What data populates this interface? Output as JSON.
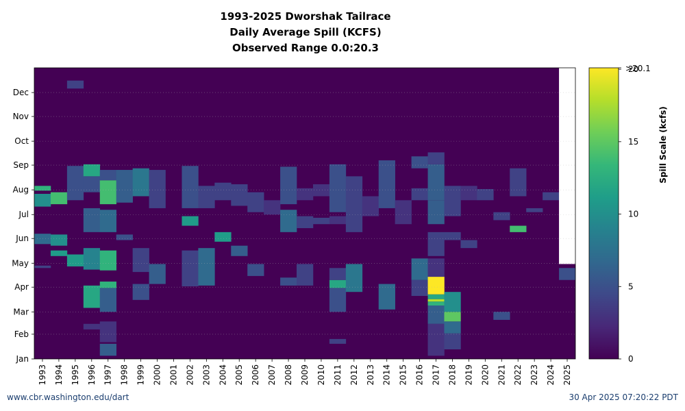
{
  "header": {
    "title_lines": [
      "1993-2025 Dworshak Tailrace",
      "Daily Average Spill (KCFS)",
      "Observed Range 0.0:20.3"
    ]
  },
  "footer": {
    "url": "www.cbr.washington.edu/dart",
    "timestamp": "30 Apr 2025 07:20:22 PDT"
  },
  "colors": {
    "viridis": [
      "#440154",
      "#482878",
      "#3e4989",
      "#31688e",
      "#26828e",
      "#1f9e89",
      "#35b779",
      "#6ece58",
      "#b5de2b",
      "#fde725"
    ],
    "missing": "#ffffff"
  },
  "chart_data": {
    "type": "heatmap",
    "title": "1993-2025 Dworshak Tailrace Daily Average Spill (KCFS) Observed Range 0.0:20.3",
    "x": [
      "1993",
      "1994",
      "1995",
      "1996",
      "1997",
      "1998",
      "1999",
      "2000",
      "2001",
      "2002",
      "2003",
      "2004",
      "2005",
      "2006",
      "2007",
      "2008",
      "2009",
      "2010",
      "2011",
      "2012",
      "2013",
      "2014",
      "2015",
      "2016",
      "2017",
      "2018",
      "2019",
      "2020",
      "2021",
      "2022",
      "2023",
      "2024",
      "2025"
    ],
    "y_ticks": [
      "Jan",
      "Feb",
      "Mar",
      "Apr",
      "May",
      "Jun",
      "Jul",
      "Aug",
      "Sep",
      "Oct",
      "Nov",
      "Dec"
    ],
    "y_tick_days": [
      1,
      32,
      60,
      91,
      121,
      152,
      182,
      213,
      244,
      274,
      305,
      335
    ],
    "ylim": [
      1,
      366
    ],
    "colorbar": {
      "label": "Spill Scale (kcfs)",
      "range": [
        0,
        20.1
      ],
      "ticks": [
        0,
        5,
        10,
        15,
        20
      ],
      "over_label": ">20.1"
    },
    "background_value": 0,
    "missing_after": {
      "year": "2025",
      "start_day": 120
    },
    "segments": [
      {
        "year": "1993",
        "start_day": 115,
        "end_day": 118,
        "value": 4
      },
      {
        "year": "1993",
        "start_day": 145,
        "end_day": 158,
        "value": 7
      },
      {
        "year": "1993",
        "start_day": 192,
        "end_day": 208,
        "value": 10
      },
      {
        "year": "1993",
        "start_day": 212,
        "end_day": 218,
        "value": 13
      },
      {
        "year": "1994",
        "start_day": 130,
        "end_day": 137,
        "value": 11
      },
      {
        "year": "1994",
        "start_day": 143,
        "end_day": 157,
        "value": 10
      },
      {
        "year": "1994",
        "start_day": 195,
        "end_day": 210,
        "value": 14
      },
      {
        "year": "1995",
        "start_day": 117,
        "end_day": 132,
        "value": 11
      },
      {
        "year": "1995",
        "start_day": 200,
        "end_day": 243,
        "value": 5
      },
      {
        "year": "1995",
        "start_day": 340,
        "end_day": 350,
        "value": 4
      },
      {
        "year": "1996",
        "start_day": 38,
        "end_day": 45,
        "value": 3
      },
      {
        "year": "1996",
        "start_day": 65,
        "end_day": 93,
        "value": 12
      },
      {
        "year": "1996",
        "start_day": 113,
        "end_day": 140,
        "value": 9
      },
      {
        "year": "1996",
        "start_day": 160,
        "end_day": 190,
        "value": 6
      },
      {
        "year": "1996",
        "start_day": 210,
        "end_day": 230,
        "value": 5
      },
      {
        "year": "1996",
        "start_day": 230,
        "end_day": 245,
        "value": 12
      },
      {
        "year": "1997",
        "start_day": 5,
        "end_day": 20,
        "value": 6
      },
      {
        "year": "1997",
        "start_day": 22,
        "end_day": 48,
        "value": 3
      },
      {
        "year": "1997",
        "start_day": 60,
        "end_day": 90,
        "value": 6
      },
      {
        "year": "1997",
        "start_day": 90,
        "end_day": 98,
        "value": 13
      },
      {
        "year": "1997",
        "start_day": 112,
        "end_day": 137,
        "value": 13
      },
      {
        "year": "1997",
        "start_day": 160,
        "end_day": 188,
        "value": 7
      },
      {
        "year": "1997",
        "start_day": 195,
        "end_day": 225,
        "value": 14
      },
      {
        "year": "1997",
        "start_day": 225,
        "end_day": 238,
        "value": 5
      },
      {
        "year": "1998",
        "start_day": 150,
        "end_day": 157,
        "value": 5
      },
      {
        "year": "1998",
        "start_day": 197,
        "end_day": 238,
        "value": 6
      },
      {
        "year": "1999",
        "start_day": 75,
        "end_day": 95,
        "value": 5
      },
      {
        "year": "1999",
        "start_day": 110,
        "end_day": 140,
        "value": 4
      },
      {
        "year": "1999",
        "start_day": 205,
        "end_day": 240,
        "value": 8
      },
      {
        "year": "2000",
        "start_day": 95,
        "end_day": 120,
        "value": 6
      },
      {
        "year": "2000",
        "start_day": 190,
        "end_day": 238,
        "value": 4
      },
      {
        "year": "2002",
        "start_day": 92,
        "end_day": 137,
        "value": 4
      },
      {
        "year": "2002",
        "start_day": 168,
        "end_day": 180,
        "value": 11
      },
      {
        "year": "2002",
        "start_day": 190,
        "end_day": 243,
        "value": 5
      },
      {
        "year": "2003",
        "start_day": 93,
        "end_day": 140,
        "value": 7
      },
      {
        "year": "2003",
        "start_day": 190,
        "end_day": 218,
        "value": 4
      },
      {
        "year": "2004",
        "start_day": 148,
        "end_day": 160,
        "value": 11
      },
      {
        "year": "2004",
        "start_day": 200,
        "end_day": 222,
        "value": 4
      },
      {
        "year": "2005",
        "start_day": 130,
        "end_day": 143,
        "value": 6
      },
      {
        "year": "2005",
        "start_day": 193,
        "end_day": 220,
        "value": 4
      },
      {
        "year": "2006",
        "start_day": 105,
        "end_day": 120,
        "value": 5
      },
      {
        "year": "2006",
        "start_day": 185,
        "end_day": 210,
        "value": 4
      },
      {
        "year": "2007",
        "start_day": 182,
        "end_day": 200,
        "value": 3
      },
      {
        "year": "2008",
        "start_day": 93,
        "end_day": 103,
        "value": 5
      },
      {
        "year": "2008",
        "start_day": 160,
        "end_day": 188,
        "value": 7
      },
      {
        "year": "2008",
        "start_day": 195,
        "end_day": 242,
        "value": 5
      },
      {
        "year": "2009",
        "start_day": 93,
        "end_day": 120,
        "value": 4
      },
      {
        "year": "2009",
        "start_day": 165,
        "end_day": 180,
        "value": 4
      },
      {
        "year": "2009",
        "start_day": 200,
        "end_day": 215,
        "value": 3
      },
      {
        "year": "2010",
        "start_day": 170,
        "end_day": 178,
        "value": 4
      },
      {
        "year": "2010",
        "start_day": 205,
        "end_day": 220,
        "value": 3
      },
      {
        "year": "2011",
        "start_day": 20,
        "end_day": 26,
        "value": 4
      },
      {
        "year": "2011",
        "start_day": 60,
        "end_day": 90,
        "value": 5
      },
      {
        "year": "2011",
        "start_day": 90,
        "end_day": 100,
        "value": 12
      },
      {
        "year": "2011",
        "start_day": 100,
        "end_day": 115,
        "value": 4
      },
      {
        "year": "2011",
        "start_day": 170,
        "end_day": 180,
        "value": 3
      },
      {
        "year": "2011",
        "start_day": 185,
        "end_day": 245,
        "value": 5
      },
      {
        "year": "2012",
        "start_day": 85,
        "end_day": 120,
        "value": 8
      },
      {
        "year": "2012",
        "start_day": 160,
        "end_day": 230,
        "value": 4
      },
      {
        "year": "2013",
        "start_day": 180,
        "end_day": 205,
        "value": 3
      },
      {
        "year": "2014",
        "start_day": 63,
        "end_day": 95,
        "value": 7
      },
      {
        "year": "2014",
        "start_day": 190,
        "end_day": 250,
        "value": 5
      },
      {
        "year": "2015",
        "start_day": 170,
        "end_day": 200,
        "value": 3
      },
      {
        "year": "2016",
        "start_day": 80,
        "end_day": 100,
        "value": 4
      },
      {
        "year": "2016",
        "start_day": 100,
        "end_day": 127,
        "value": 7
      },
      {
        "year": "2016",
        "start_day": 200,
        "end_day": 215,
        "value": 4
      },
      {
        "year": "2016",
        "start_day": 240,
        "end_day": 255,
        "value": 5
      },
      {
        "year": "2017",
        "start_day": 5,
        "end_day": 45,
        "value": 3
      },
      {
        "year": "2017",
        "start_day": 45,
        "end_day": 68,
        "value": 6
      },
      {
        "year": "2017",
        "start_day": 68,
        "end_day": 73,
        "value": 13
      },
      {
        "year": "2017",
        "start_day": 73,
        "end_day": 76,
        "value": 18
      },
      {
        "year": "2017",
        "start_day": 76,
        "end_day": 82,
        "value": 12
      },
      {
        "year": "2017",
        "start_day": 82,
        "end_day": 104,
        "value": 20.3
      },
      {
        "year": "2017",
        "start_day": 104,
        "end_day": 127,
        "value": 3
      },
      {
        "year": "2017",
        "start_day": 130,
        "end_day": 160,
        "value": 4
      },
      {
        "year": "2017",
        "start_day": 170,
        "end_day": 200,
        "value": 6
      },
      {
        "year": "2017",
        "start_day": 200,
        "end_day": 245,
        "value": 6
      },
      {
        "year": "2017",
        "start_day": 245,
        "end_day": 260,
        "value": 4
      },
      {
        "year": "2018",
        "start_day": 13,
        "end_day": 33,
        "value": 4
      },
      {
        "year": "2018",
        "start_day": 33,
        "end_day": 48,
        "value": 7
      },
      {
        "year": "2018",
        "start_day": 48,
        "end_day": 60,
        "value": 15
      },
      {
        "year": "2018",
        "start_day": 60,
        "end_day": 85,
        "value": 10
      },
      {
        "year": "2018",
        "start_day": 150,
        "end_day": 160,
        "value": 4
      },
      {
        "year": "2018",
        "start_day": 180,
        "end_day": 218,
        "value": 4
      },
      {
        "year": "2019",
        "start_day": 140,
        "end_day": 150,
        "value": 4
      },
      {
        "year": "2019",
        "start_day": 200,
        "end_day": 218,
        "value": 3
      },
      {
        "year": "2020",
        "start_day": 200,
        "end_day": 214,
        "value": 4
      },
      {
        "year": "2021",
        "start_day": 50,
        "end_day": 60,
        "value": 5
      },
      {
        "year": "2021",
        "start_day": 175,
        "end_day": 185,
        "value": 4
      },
      {
        "year": "2022",
        "start_day": 160,
        "end_day": 168,
        "value": 14
      },
      {
        "year": "2022",
        "start_day": 205,
        "end_day": 240,
        "value": 4
      },
      {
        "year": "2023",
        "start_day": 185,
        "end_day": 190,
        "value": 4
      },
      {
        "year": "2024",
        "start_day": 200,
        "end_day": 210,
        "value": 4
      },
      {
        "year": "2025",
        "start_day": 100,
        "end_day": 115,
        "value": 5
      }
    ]
  }
}
